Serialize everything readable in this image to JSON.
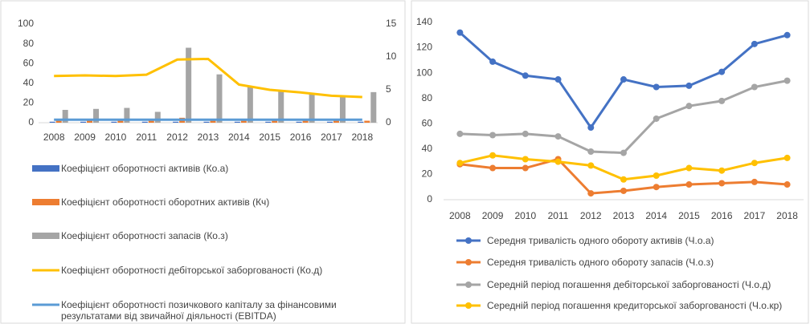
{
  "chart_data": [
    {
      "type": "bar",
      "categories": [
        "2008",
        "2009",
        "2010",
        "2011",
        "2012",
        "2013",
        "2014",
        "2015",
        "2016",
        "2017",
        "2018"
      ],
      "ylim": [
        0,
        100
      ],
      "yticks": [
        0,
        20,
        40,
        60,
        80,
        100
      ],
      "y2lim": [
        0,
        15
      ],
      "y2ticks": [
        0,
        5,
        10,
        15
      ],
      "grid": false,
      "series": [
        {
          "name": "Коефіцієнт оборотності активів (Ко.а)",
          "color": "#4472c4",
          "type": "bar",
          "values": [
            1,
            1,
            1,
            1,
            1,
            1,
            1,
            1,
            1,
            1,
            1
          ]
        },
        {
          "name": "Коефіцієнт оборотності оборотних активів (Кч)",
          "color": "#ed7d31",
          "type": "bar",
          "values": [
            2,
            2,
            2,
            2,
            5,
            2,
            2,
            2,
            2,
            2,
            2
          ]
        },
        {
          "name": "Коефіцієнт оборотності запасів (Ко.з)",
          "color": "#a5a5a5",
          "type": "bar",
          "values": [
            13,
            14,
            15,
            11,
            76,
            49,
            37,
            32,
            30,
            26,
            31
          ]
        },
        {
          "name": "Коефіцієнт оборотності дебіторської заборгованості (Ко.д)",
          "color": "#ffc000",
          "type": "line",
          "axis": "y2",
          "values": [
            7.1,
            7.2,
            7.1,
            7.3,
            9.6,
            9.7,
            5.8,
            5.0,
            4.6,
            4.1,
            3.9
          ]
        },
        {
          "name": "Коефіцієнт оборотності позичкового капіталу за фінансовими результатами від звичайної діяльності (EBITDA)",
          "color": "#5b9bd5",
          "type": "line",
          "values": [
            3,
            3,
            3,
            3,
            3,
            3,
            3,
            3,
            3,
            3,
            3
          ]
        }
      ]
    },
    {
      "type": "line",
      "categories": [
        "2008",
        "2009",
        "2010",
        "2011",
        "2012",
        "2013",
        "2014",
        "2015",
        "2016",
        "2017",
        "2018"
      ],
      "ylim": [
        0,
        140
      ],
      "yticks": [
        0,
        20,
        40,
        60,
        80,
        100,
        120,
        140
      ],
      "grid": false,
      "markers": true,
      "series": [
        {
          "name": "Середня тривалість одного обороту активів (Ч.о.а)",
          "color": "#4472c4",
          "values": [
            132,
            109,
            98,
            95,
            57,
            95,
            89,
            90,
            101,
            123,
            130
          ]
        },
        {
          "name": "Середня тривалість одного обороту запасів (Ч.о.з)",
          "color": "#ed7d31",
          "values": [
            28,
            25,
            25,
            32,
            5,
            7,
            10,
            12,
            13,
            14,
            12
          ]
        },
        {
          "name": "Середній період погашення дебіторської заборгованості (Ч.о.д)",
          "color": "#a5a5a5",
          "values": [
            52,
            51,
            52,
            50,
            38,
            37,
            64,
            74,
            78,
            89,
            94
          ]
        },
        {
          "name": "Середній період погашення кредиторської заборгованості (Ч.о.кр)",
          "color": "#ffc000",
          "values": [
            29,
            35,
            32,
            30,
            27,
            16,
            19,
            25,
            23,
            29,
            33
          ]
        }
      ]
    }
  ]
}
